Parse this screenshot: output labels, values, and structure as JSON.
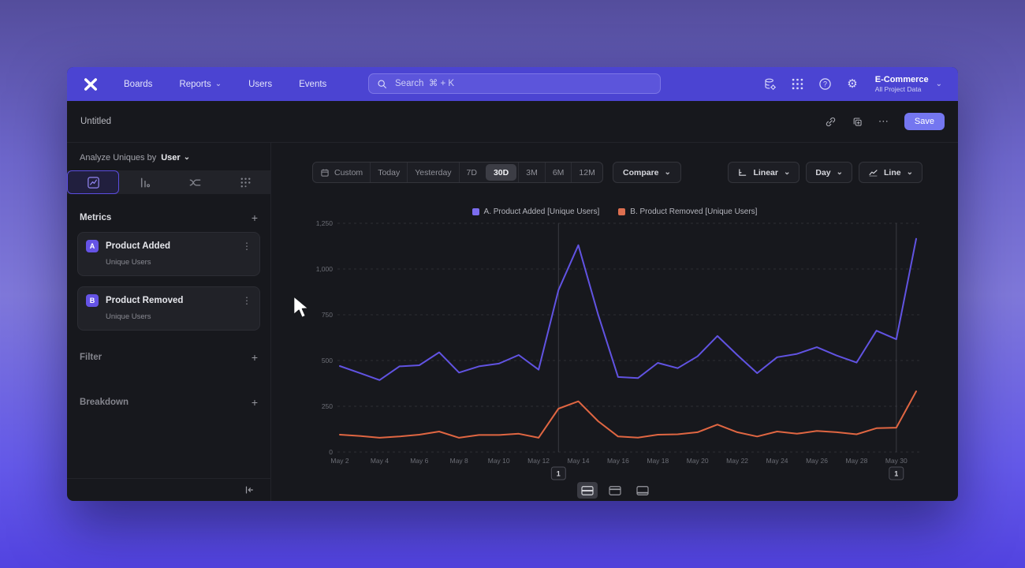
{
  "nav": {
    "menu": [
      "Boards",
      "Reports",
      "Users",
      "Events"
    ],
    "search_placeholder": "Search  ⌘ + K",
    "project_name": "E-Commerce",
    "project_scope": "All Project Data"
  },
  "toolbar": {
    "title": "Untitled",
    "save_label": "Save"
  },
  "sidebar": {
    "analyze_label": "Analyze Uniques by",
    "analyze_value": "User",
    "metrics_header": "Metrics",
    "metrics": [
      {
        "badge": "A",
        "name": "Product Added",
        "subtitle": "Unique Users"
      },
      {
        "badge": "B",
        "name": "Product Removed",
        "subtitle": "Unique Users"
      }
    ],
    "filter_header": "Filter",
    "breakdown_header": "Breakdown"
  },
  "controls": {
    "ranges": [
      "Custom",
      "Today",
      "Yesterday",
      "7D",
      "30D",
      "3M",
      "6M",
      "12M"
    ],
    "selected_range": "30D",
    "compare_label": "Compare",
    "scale_label": "Linear",
    "interval_label": "Day",
    "chart_type_label": "Line"
  },
  "chart_data": {
    "type": "line",
    "x": [
      "May 2",
      "May 3",
      "May 4",
      "May 5",
      "May 6",
      "May 7",
      "May 8",
      "May 9",
      "May 10",
      "May 11",
      "May 12",
      "May 13",
      "May 14",
      "May 15",
      "May 16",
      "May 17",
      "May 18",
      "May 19",
      "May 20",
      "May 21",
      "May 22",
      "May 23",
      "May 24",
      "May 25",
      "May 26",
      "May 27",
      "May 28",
      "May 29",
      "May 30",
      "May 31"
    ],
    "x_tick_step": 2,
    "ylim": [
      0,
      1250
    ],
    "yticks": [
      {
        "value": 0,
        "label": "0"
      },
      {
        "value": 250,
        "label": "250"
      },
      {
        "value": 500,
        "label": "500"
      },
      {
        "value": 750,
        "label": "750"
      },
      {
        "value": 1000,
        "label": "1,000"
      },
      {
        "value": 1250,
        "label": "1,250"
      }
    ],
    "grid": "horizontal-dashed",
    "legend_position": "top-center",
    "series": [
      {
        "name": "A. Product Added [Unique Users]",
        "color": "#6153e2",
        "legend_color": "#7b6cee",
        "values": [
          470,
          432,
          393,
          468,
          474,
          545,
          434,
          468,
          483,
          530,
          450,
          885,
          1130,
          750,
          410,
          404,
          487,
          458,
          523,
          634,
          530,
          431,
          518,
          536,
          573,
          527,
          489,
          663,
          616,
          1165
        ]
      },
      {
        "name": "B. Product Removed [Unique Users]",
        "color": "#e06642",
        "legend_color": "#dd6f50",
        "values": [
          95,
          88,
          78,
          85,
          95,
          112,
          78,
          93,
          93,
          100,
          78,
          237,
          277,
          168,
          85,
          79,
          95,
          97,
          108,
          150,
          108,
          85,
          112,
          100,
          115,
          108,
          97,
          130,
          133,
          332
        ]
      }
    ],
    "annotations": [
      {
        "day": "May 13",
        "label": "1"
      },
      {
        "day": "May 30",
        "label": "1"
      }
    ]
  }
}
